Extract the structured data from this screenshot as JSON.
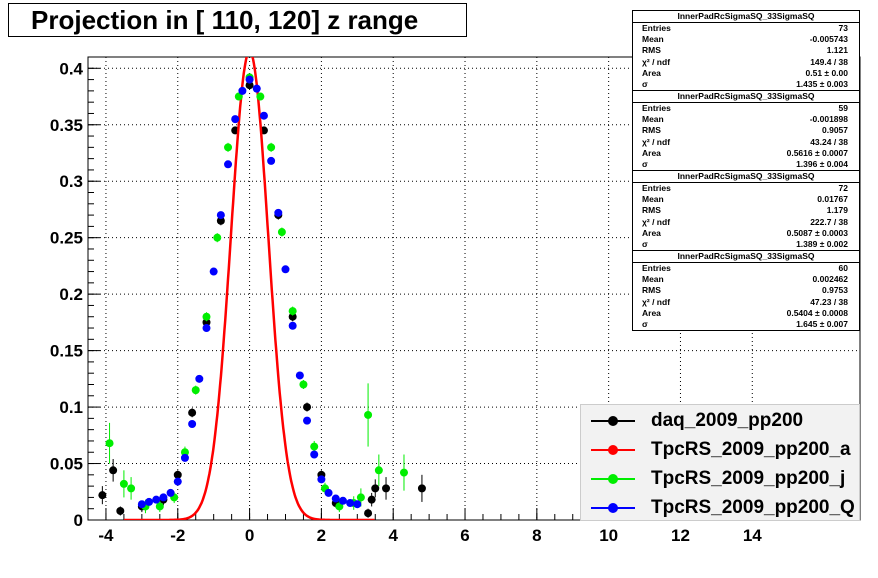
{
  "title": "Projection in [ 110, 120] z range",
  "stats": [
    {
      "name": "InnerPadRcSigmaSQ_33SigmaSQ",
      "rows": [
        {
          "label": "Entries",
          "value": "73"
        },
        {
          "label": "Mean",
          "value": "-0.005743"
        },
        {
          "label": "RMS",
          "value": "1.121"
        },
        {
          "label": "χ² / ndf",
          "value": "149.4 / 38"
        },
        {
          "label": "Area",
          "value": "0.51 ± 0.00"
        },
        {
          "label": "σ",
          "value": "1.435 ± 0.003"
        }
      ]
    },
    {
      "name": "InnerPadRcSigmaSQ_33SigmaSQ",
      "rows": [
        {
          "label": "Entries",
          "value": "59"
        },
        {
          "label": "Mean",
          "value": "-0.001898"
        },
        {
          "label": "RMS",
          "value": "0.9057"
        },
        {
          "label": "χ² / ndf",
          "value": "43.24 / 38"
        },
        {
          "label": "Area",
          "value": "0.5616 ± 0.0007"
        },
        {
          "label": "σ",
          "value": "1.396 ± 0.004"
        }
      ]
    },
    {
      "name": "InnerPadRcSigmaSQ_33SigmaSQ",
      "rows": [
        {
          "label": "Entries",
          "value": "72"
        },
        {
          "label": "Mean",
          "value": "0.01767"
        },
        {
          "label": "RMS",
          "value": "1.179"
        },
        {
          "label": "χ² / ndf",
          "value": "222.7 / 38"
        },
        {
          "label": "Area",
          "value": "0.5087 ± 0.0003"
        },
        {
          "label": "σ",
          "value": "1.389 ± 0.002"
        }
      ]
    },
    {
      "name": "InnerPadRcSigmaSQ_33SigmaSQ",
      "rows": [
        {
          "label": "Entries",
          "value": "60"
        },
        {
          "label": "Mean",
          "value": "0.002462"
        },
        {
          "label": "RMS",
          "value": "0.9753"
        },
        {
          "label": "χ² / ndf",
          "value": "47.23 / 38"
        },
        {
          "label": "Area",
          "value": "0.5404 ± 0.0008"
        },
        {
          "label": "σ",
          "value": "1.645 ± 0.007"
        }
      ]
    }
  ],
  "legend": [
    {
      "label": "daq_2009_pp200",
      "color": "#000000"
    },
    {
      "label": "TpcRS_2009_pp200_a",
      "color": "#ff0000"
    },
    {
      "label": "TpcRS_2009_pp200_j",
      "color": "#00ee00"
    },
    {
      "label": "TpcRS_2009_pp200_Q",
      "color": "#0000ff"
    }
  ],
  "chart_data": {
    "type": "scatter",
    "title": "Projection in [ 110, 120] z range",
    "xlim": [
      -4.5,
      17
    ],
    "ylim": [
      0,
      0.41
    ],
    "xticks": [
      "-4",
      "-2",
      "0",
      "2",
      "4",
      "6",
      "8",
      "10",
      "12",
      "14"
    ],
    "yticks": [
      "0",
      "0.05",
      "0.1",
      "0.15",
      "0.2",
      "0.25",
      "0.3",
      "0.35",
      "0.4"
    ],
    "grid": true,
    "legend_position": "bottom-right",
    "series": [
      {
        "name": "daq_2009_pp200",
        "color": "#000000",
        "points": [
          [
            -4.1,
            0.022,
            0.008
          ],
          [
            -3.8,
            0.044,
            0.01
          ],
          [
            -3.6,
            0.008,
            0.004
          ],
          [
            -3.0,
            0.012,
            0.005
          ],
          [
            -2.4,
            0.018,
            0.005
          ],
          [
            -2.0,
            0.04,
            0.004
          ],
          [
            -1.6,
            0.095,
            0.004
          ],
          [
            -1.2,
            0.175,
            0.004
          ],
          [
            -0.8,
            0.265,
            0.004
          ],
          [
            -0.4,
            0.345,
            0.003
          ],
          [
            0.0,
            0.385,
            0.003
          ],
          [
            0.4,
            0.345,
            0.003
          ],
          [
            0.8,
            0.27,
            0.004
          ],
          [
            1.2,
            0.18,
            0.004
          ],
          [
            1.6,
            0.1,
            0.004
          ],
          [
            2.0,
            0.04,
            0.004
          ],
          [
            2.4,
            0.015,
            0.004
          ],
          [
            3.3,
            0.006,
            0.004
          ],
          [
            3.4,
            0.018,
            0.006
          ],
          [
            3.5,
            0.028,
            0.008
          ],
          [
            3.8,
            0.028,
            0.01
          ],
          [
            4.8,
            0.028,
            0.012
          ]
        ]
      },
      {
        "name": "TpcRS_2009_pp200_a",
        "color": "#ff0000",
        "curve": {
          "amplitude": 0.415,
          "center": 0.0,
          "sigma": 0.52
        }
      },
      {
        "name": "TpcRS_2009_pp200_j",
        "color": "#00ee00",
        "points": [
          [
            -3.9,
            0.068,
            0.018
          ],
          [
            -3.5,
            0.032,
            0.012
          ],
          [
            -3.3,
            0.028,
            0.01
          ],
          [
            -2.9,
            0.012,
            0.006
          ],
          [
            -2.5,
            0.012,
            0.005
          ],
          [
            -2.1,
            0.02,
            0.005
          ],
          [
            -1.8,
            0.06,
            0.005
          ],
          [
            -1.5,
            0.115,
            0.004
          ],
          [
            -1.2,
            0.18,
            0.004
          ],
          [
            -0.9,
            0.25,
            0.004
          ],
          [
            -0.6,
            0.33,
            0.004
          ],
          [
            -0.3,
            0.375,
            0.003
          ],
          [
            0.0,
            0.392,
            0.003
          ],
          [
            0.3,
            0.375,
            0.003
          ],
          [
            0.6,
            0.33,
            0.004
          ],
          [
            0.9,
            0.255,
            0.004
          ],
          [
            1.2,
            0.185,
            0.004
          ],
          [
            1.5,
            0.12,
            0.004
          ],
          [
            1.8,
            0.065,
            0.005
          ],
          [
            2.1,
            0.028,
            0.005
          ],
          [
            2.5,
            0.012,
            0.005
          ],
          [
            2.9,
            0.015,
            0.006
          ],
          [
            3.1,
            0.02,
            0.008
          ],
          [
            3.3,
            0.093,
            0.028
          ],
          [
            3.6,
            0.044,
            0.014
          ],
          [
            4.3,
            0.042,
            0.016
          ]
        ]
      },
      {
        "name": "TpcRS_2009_pp200_Q",
        "color": "#0000ff",
        "points": [
          [
            -3.0,
            0.014,
            0.003
          ],
          [
            -2.8,
            0.016,
            0.003
          ],
          [
            -2.6,
            0.018,
            0.003
          ],
          [
            -2.4,
            0.02,
            0.003
          ],
          [
            -2.2,
            0.024,
            0.003
          ],
          [
            -2.0,
            0.034,
            0.003
          ],
          [
            -1.8,
            0.055,
            0.003
          ],
          [
            -1.6,
            0.085,
            0.003
          ],
          [
            -1.4,
            0.125,
            0.003
          ],
          [
            -1.2,
            0.17,
            0.003
          ],
          [
            -1.0,
            0.22,
            0.003
          ],
          [
            -0.8,
            0.27,
            0.003
          ],
          [
            -0.6,
            0.315,
            0.003
          ],
          [
            -0.4,
            0.355,
            0.003
          ],
          [
            -0.2,
            0.38,
            0.003
          ],
          [
            0.0,
            0.39,
            0.003
          ],
          [
            0.2,
            0.382,
            0.003
          ],
          [
            0.4,
            0.358,
            0.003
          ],
          [
            0.6,
            0.318,
            0.003
          ],
          [
            0.8,
            0.272,
            0.003
          ],
          [
            1.0,
            0.222,
            0.003
          ],
          [
            1.2,
            0.172,
            0.003
          ],
          [
            1.4,
            0.128,
            0.003
          ],
          [
            1.6,
            0.088,
            0.003
          ],
          [
            1.8,
            0.058,
            0.003
          ],
          [
            2.0,
            0.036,
            0.003
          ],
          [
            2.2,
            0.024,
            0.003
          ],
          [
            2.4,
            0.019,
            0.003
          ],
          [
            2.6,
            0.017,
            0.003
          ],
          [
            2.8,
            0.015,
            0.003
          ],
          [
            3.0,
            0.014,
            0.003
          ]
        ]
      }
    ]
  }
}
